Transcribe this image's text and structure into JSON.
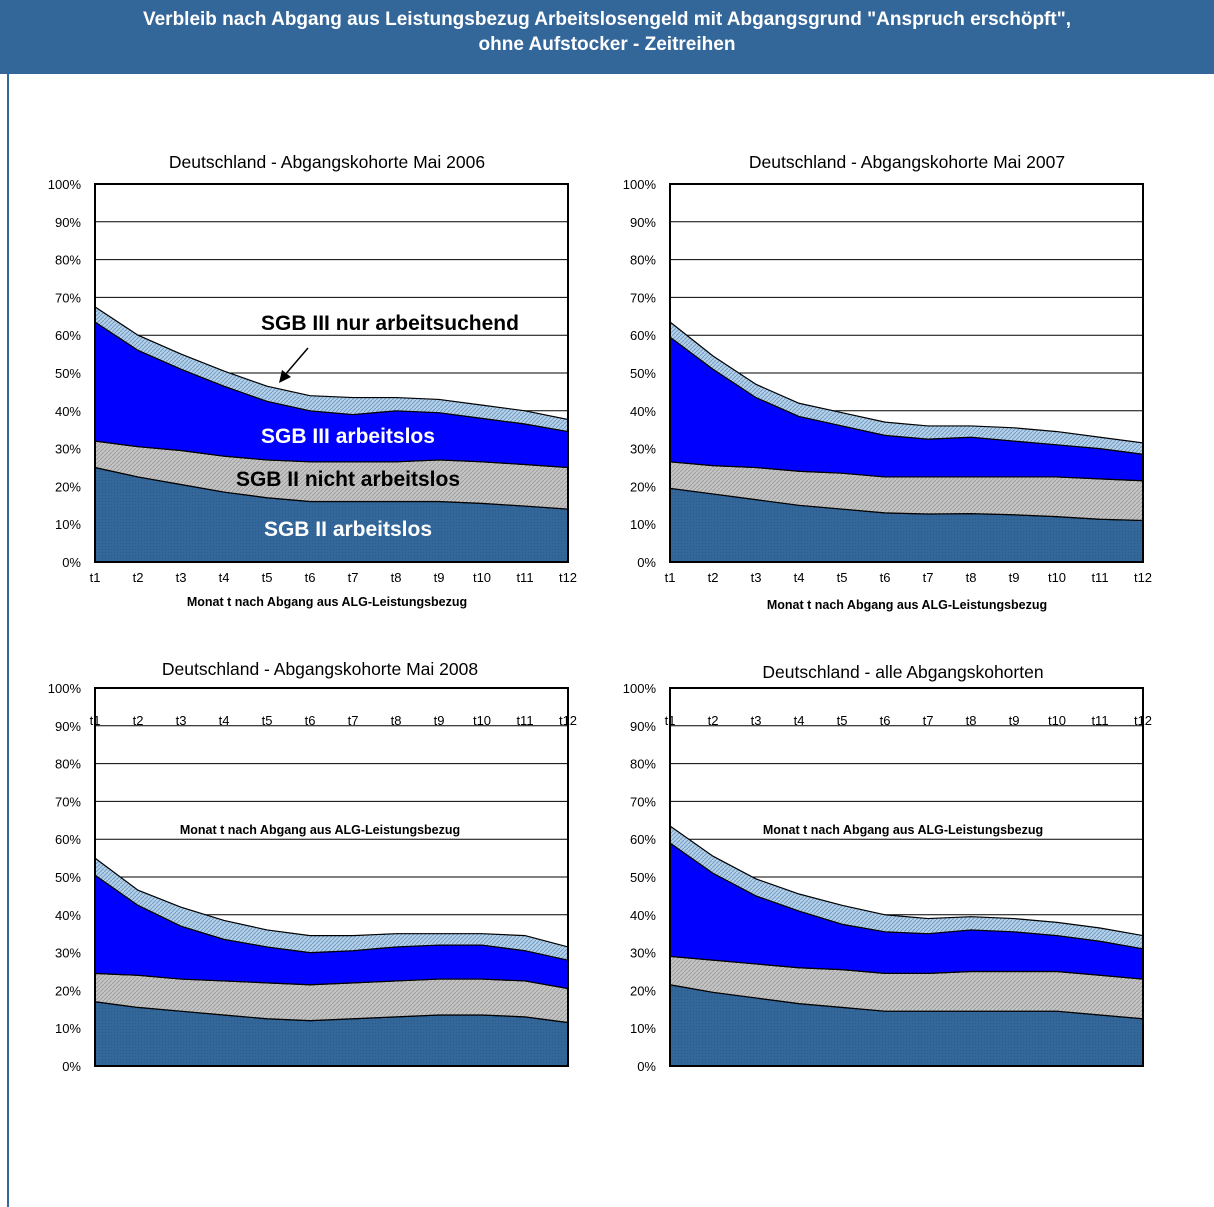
{
  "header": {
    "line1": "Verbleib nach Abgang aus Leistungsbezug Arbeitslosengeld mit Abgangsgrund \"Anspruch erschöpft\",",
    "line2": "ohne Aufstocker - Zeitreihen"
  },
  "colors": {
    "sgb2_arbeitslos": "#336699",
    "sgb2_nicht_arbeitslos": "#c0c0c0",
    "sgb3_arbeitslos": "#0000ff",
    "sgb3_nur_arbeitsuchend": "#a6c8e6",
    "header_bg": "#336699"
  },
  "chart_data": [
    {
      "type": "area",
      "stacked": true,
      "title": "Deutschland - Abgangskohorte Mai 2006",
      "xlabel": "Monat t nach Abgang aus ALG-Leistungsbezug",
      "ylabel": "",
      "ylim": [
        0,
        100
      ],
      "yticks": [
        "0%",
        "10%",
        "20%",
        "30%",
        "40%",
        "50%",
        "60%",
        "70%",
        "80%",
        "90%",
        "100%"
      ],
      "categories": [
        "t1",
        "t2",
        "t3",
        "t4",
        "t5",
        "t6",
        "t7",
        "t8",
        "t9",
        "t10",
        "t11",
        "t12"
      ],
      "grid": true,
      "series": [
        {
          "name": "SGB II arbeitslos",
          "values": [
            25,
            22.5,
            20.5,
            18.5,
            17,
            16,
            16,
            16,
            16,
            15.5,
            14.8,
            14
          ]
        },
        {
          "name": "SGB II nicht arbeitslos",
          "values": [
            7,
            8,
            9,
            9.5,
            10,
            10.5,
            10.5,
            10.5,
            11,
            11,
            11,
            11
          ]
        },
        {
          "name": "SGB III arbeitslos",
          "values": [
            31.5,
            25.5,
            21.5,
            18.5,
            15.5,
            13.5,
            12.5,
            13.5,
            12.5,
            11.5,
            10.7,
            9.5
          ]
        },
        {
          "name": "SGB III nur arbeitsuchend",
          "values": [
            4,
            4,
            4,
            4,
            4,
            4,
            4.5,
            3.5,
            3.5,
            3.5,
            3.5,
            3.2
          ]
        }
      ],
      "annotations": [
        "SGB III nur arbeitsuchend",
        "SGB III arbeitslos",
        "SGB II nicht arbeitslos",
        "SGB II arbeitslos"
      ]
    },
    {
      "type": "area",
      "stacked": true,
      "title": "Deutschland - Abgangskohorte Mai 2007",
      "xlabel": "Monat t nach Abgang aus ALG-Leistungsbezug",
      "ylabel": "",
      "ylim": [
        0,
        100
      ],
      "yticks": [
        "0%",
        "10%",
        "20%",
        "30%",
        "40%",
        "50%",
        "60%",
        "70%",
        "80%",
        "90%",
        "100%"
      ],
      "categories": [
        "t1",
        "t2",
        "t3",
        "t4",
        "t5",
        "t6",
        "t7",
        "t8",
        "t9",
        "t10",
        "t11",
        "t12"
      ],
      "grid": true,
      "series": [
        {
          "name": "SGB II arbeitslos",
          "values": [
            19.5,
            18,
            16.5,
            15,
            14,
            13,
            12.7,
            12.8,
            12.5,
            12,
            11.3,
            11
          ]
        },
        {
          "name": "SGB II nicht arbeitslos",
          "values": [
            7,
            7.5,
            8.5,
            9,
            9.5,
            9.5,
            9.8,
            9.7,
            10,
            10.5,
            10.7,
            10.5
          ]
        },
        {
          "name": "SGB III arbeitslos",
          "values": [
            33,
            25.5,
            18.5,
            14.5,
            12.5,
            11,
            10,
            10.5,
            9.5,
            8.5,
            8,
            7
          ]
        },
        {
          "name": "SGB III nur arbeitsuchend",
          "values": [
            4,
            3.5,
            3.5,
            3.5,
            3.5,
            3.5,
            3.5,
            3,
            3.5,
            3.5,
            3,
            3
          ]
        }
      ]
    },
    {
      "type": "area",
      "stacked": true,
      "title": "Deutschland - Abgangskohorte Mai 2008",
      "xlabel": "Monat t nach Abgang aus ALG-Leistungsbezug",
      "ylabel": "",
      "ylim": [
        0,
        100
      ],
      "yticks": [
        "0%",
        "10%",
        "20%",
        "30%",
        "40%",
        "50%",
        "60%",
        "70%",
        "80%",
        "90%",
        "100%"
      ],
      "categories": [
        "t1",
        "t2",
        "t3",
        "t4",
        "t5",
        "t6",
        "t7",
        "t8",
        "t9",
        "t10",
        "t11",
        "t12"
      ],
      "grid": true,
      "series": [
        {
          "name": "SGB II arbeitslos",
          "values": [
            17,
            15.5,
            14.5,
            13.5,
            12.5,
            12,
            12.5,
            13,
            13.5,
            13.5,
            13,
            11.5
          ]
        },
        {
          "name": "SGB II nicht arbeitslos",
          "values": [
            7.5,
            8.5,
            8.5,
            9,
            9.5,
            9.5,
            9.5,
            9.5,
            9.5,
            9.5,
            9.5,
            9
          ]
        },
        {
          "name": "SGB III arbeitslos",
          "values": [
            26,
            18.5,
            14,
            11,
            9.5,
            8.5,
            8.5,
            9,
            9,
            9,
            8,
            7.5
          ]
        },
        {
          "name": "SGB III nur arbeitsuchend",
          "values": [
            4.5,
            4,
            5,
            5,
            4.5,
            4.5,
            4,
            3.5,
            3,
            3,
            4,
            3.5
          ]
        }
      ]
    },
    {
      "type": "area",
      "stacked": true,
      "title": "Deutschland - alle Abgangskohorten",
      "xlabel": "Monat t nach Abgang aus ALG-Leistungsbezug",
      "ylabel": "",
      "ylim": [
        0,
        100
      ],
      "yticks": [
        "0%",
        "10%",
        "20%",
        "30%",
        "40%",
        "50%",
        "60%",
        "70%",
        "80%",
        "90%",
        "100%"
      ],
      "categories": [
        "t1",
        "t2",
        "t3",
        "t4",
        "t5",
        "t6",
        "t7",
        "t8",
        "t9",
        "t10",
        "t11",
        "t12"
      ],
      "grid": true,
      "series": [
        {
          "name": "SGB II arbeitslos",
          "values": [
            21.5,
            19.5,
            18,
            16.5,
            15.5,
            14.5,
            14.5,
            14.5,
            14.5,
            14.5,
            13.5,
            12.5
          ]
        },
        {
          "name": "SGB II nicht arbeitslos",
          "values": [
            7.5,
            8.5,
            9,
            9.5,
            10,
            10,
            10,
            10.5,
            10.5,
            10.5,
            10.5,
            10.5
          ]
        },
        {
          "name": "SGB III arbeitslos",
          "values": [
            30,
            23,
            18,
            15,
            12,
            11,
            10.5,
            11,
            10.5,
            9.5,
            9,
            8
          ]
        },
        {
          "name": "SGB III nur arbeitsuchend",
          "values": [
            4.5,
            4.5,
            4.5,
            4.5,
            5,
            4.5,
            4,
            3.5,
            3.5,
            3.5,
            3.5,
            3.5
          ]
        }
      ]
    }
  ]
}
